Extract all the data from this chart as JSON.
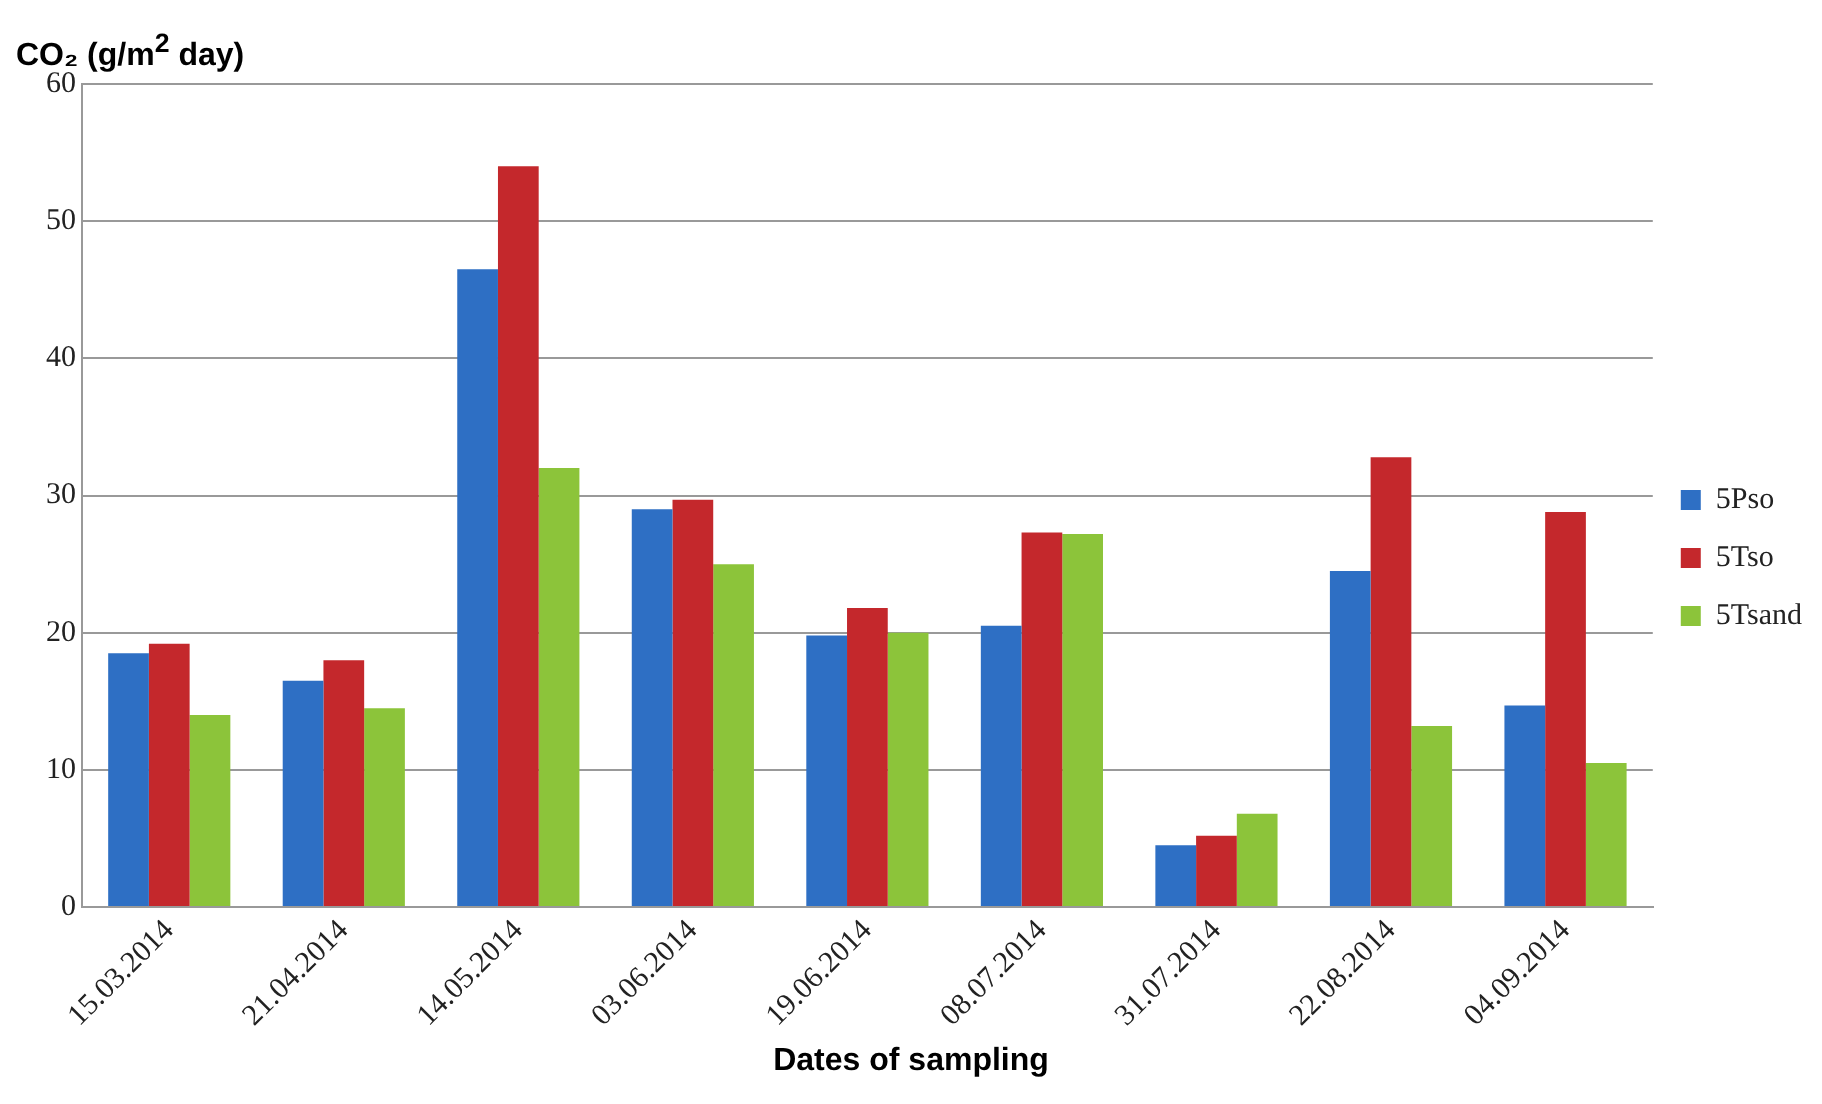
{
  "chart_data": {
    "type": "bar",
    "ylabel": "CO₂ (g/m$^{2}$ day)",
    "xlabel": "Dates of sampling",
    "categories": [
      "15.03.2014",
      "21.04.2014",
      "14.05.2014",
      "03.06.2014",
      "19.06.2014",
      "08.07.2014",
      "31.07.2014",
      "22.08.2014",
      "04.09.2014"
    ],
    "series": [
      {
        "name": "5Pso",
        "color": "#2e6fc4",
        "values": [
          18.5,
          16.5,
          46.5,
          29,
          19.8,
          20.5,
          4.5,
          24.5,
          14.7
        ]
      },
      {
        "name": "5Tso",
        "color": "#c4282c",
        "values": [
          19.2,
          18,
          54,
          29.7,
          21.8,
          27.3,
          5.2,
          32.8,
          28.8
        ]
      },
      {
        "name": "5Tsand",
        "color": "#8cc43a",
        "values": [
          14,
          14.5,
          32,
          25,
          20,
          27.2,
          6.8,
          13.2,
          10.5
        ]
      }
    ],
    "ylim": [
      0,
      60
    ],
    "yticks": [
      0,
      10,
      20,
      30,
      40,
      50,
      60
    ],
    "grid": "y",
    "legend": "right"
  }
}
